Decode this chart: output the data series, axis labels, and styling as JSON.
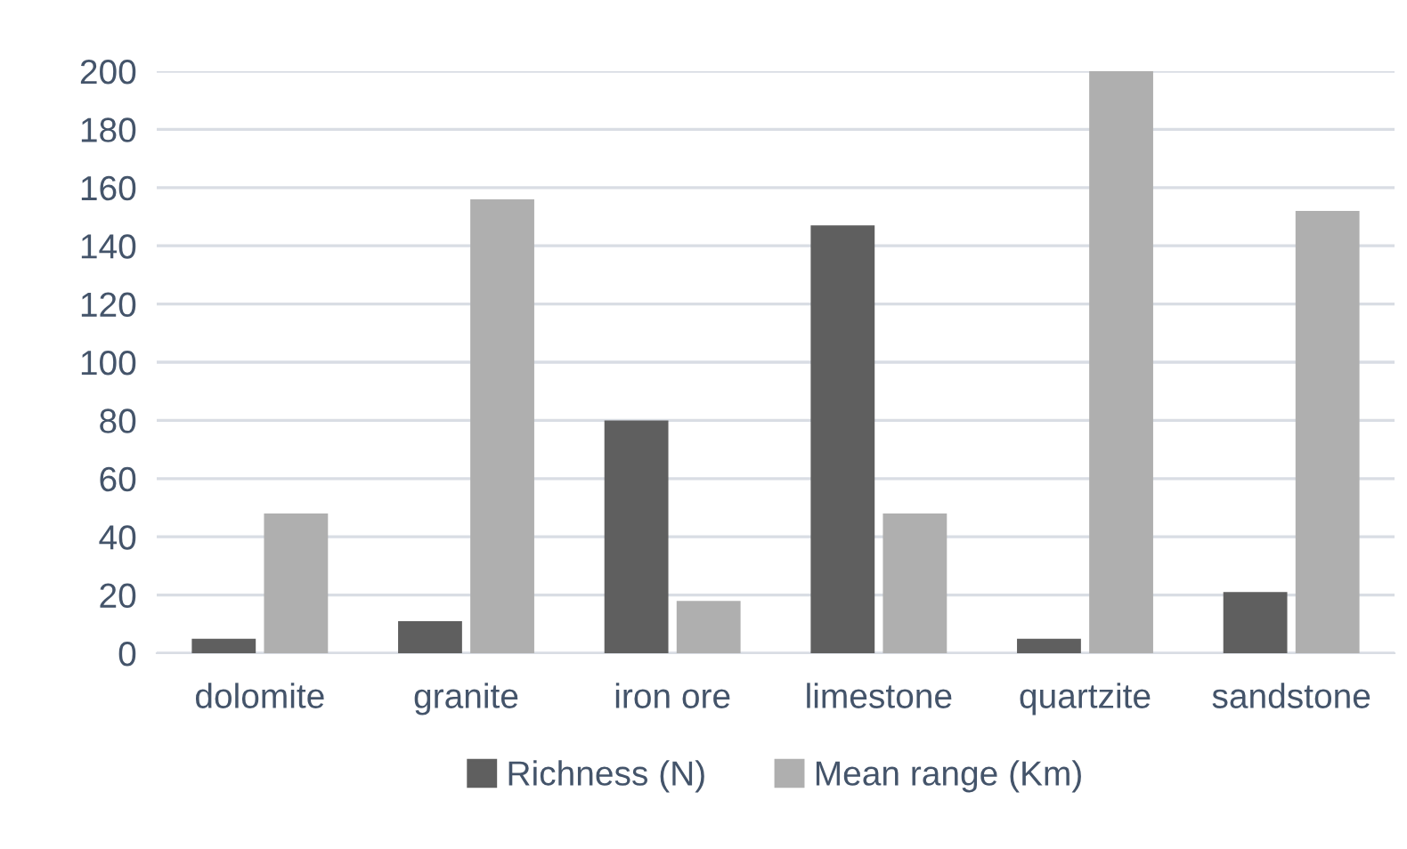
{
  "chart_data": {
    "type": "bar",
    "categories": [
      "dolomite",
      "granite",
      "iron ore",
      "limestone",
      "quartzite",
      "sandstone"
    ],
    "series": [
      {
        "name": "Richness (N)",
        "color": "#5f5f5f",
        "values": [
          5,
          11,
          80,
          147,
          5,
          21
        ]
      },
      {
        "name": "Mean range (Km)",
        "color": "#afafaf",
        "values": [
          48,
          156,
          18,
          48,
          200,
          152
        ]
      }
    ],
    "ylim": [
      0,
      200
    ],
    "yticks": [
      0,
      20,
      40,
      60,
      80,
      100,
      120,
      140,
      160,
      180,
      200
    ],
    "grid": "y",
    "legend": "bottom"
  }
}
